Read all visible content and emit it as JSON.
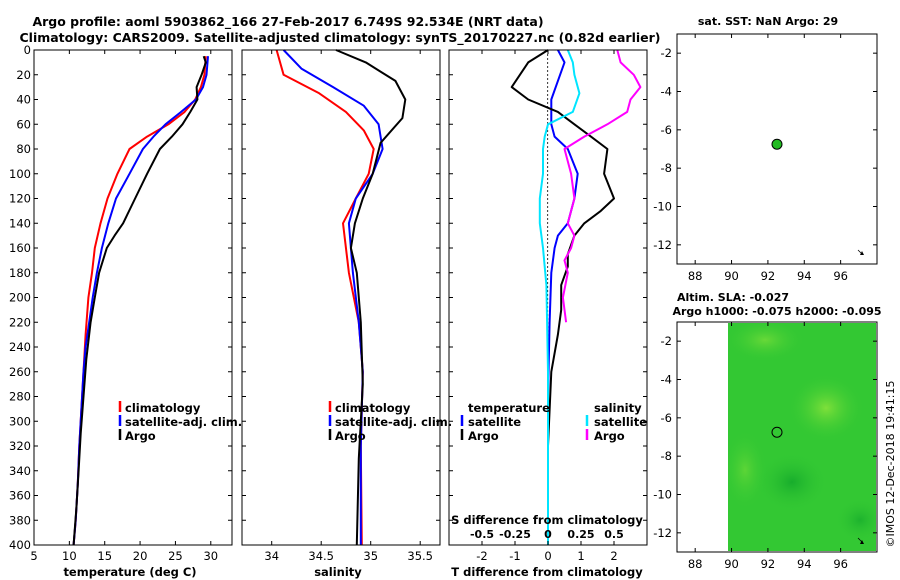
{
  "header": {
    "title_line1": "Argo profile: aoml 5903862_166 27-Feb-2017 6.749S 92.534E (NRT data)",
    "title_line2": "Climatology: CARS2009. Satellite-adjusted climatology: synTS_20170227.nc (0.82d earlier)"
  },
  "colors": {
    "climatology": "#ff0000",
    "satellite": "#0000ff",
    "argo": "#000000",
    "sal_satellite": "#00e5ff",
    "sal_argo": "#ff00ff",
    "sla_field": "#33c833"
  },
  "chart_data": [
    {
      "type": "line",
      "title": "",
      "xlabel": "temperature (deg C)",
      "ylabel": "",
      "xlim": [
        5,
        33
      ],
      "ylim": [
        400,
        0
      ],
      "xticks": [
        5,
        10,
        15,
        20,
        25,
        30
      ],
      "xtick_labels": [
        "5",
        "10",
        "15",
        "20",
        "25",
        "30"
      ],
      "yticks": [
        0,
        20,
        40,
        60,
        80,
        100,
        120,
        140,
        160,
        180,
        200,
        220,
        240,
        260,
        280,
        300,
        320,
        340,
        360,
        380,
        400
      ],
      "ytick_labels": [
        "0",
        "20",
        "40",
        "60",
        "80",
        "100",
        "120",
        "140",
        "160",
        "180",
        "200",
        "220",
        "240",
        "260",
        "280",
        "300",
        "320",
        "340",
        "360",
        "380",
        "400"
      ],
      "legend": [
        "climatology",
        "satellite-adj. clim.",
        "Argo"
      ],
      "series": [
        {
          "name": "climatology",
          "color": "#ff0000",
          "x": [
            29.3,
            29.1,
            28.6,
            27.8,
            26.3,
            24.0,
            21.0,
            18.5,
            16.8,
            15.4,
            14.4,
            13.6,
            13.2,
            12.7,
            12.3,
            12.0,
            11.7,
            11.4,
            11.2,
            10.9,
            10.6
          ],
          "y": [
            5,
            20,
            30,
            40,
            50,
            60,
            70,
            80,
            100,
            120,
            140,
            160,
            180,
            200,
            230,
            260,
            290,
            320,
            350,
            380,
            400
          ]
        },
        {
          "name": "satellite-adj. clim.",
          "color": "#0000ff",
          "x": [
            29.6,
            29.4,
            28.9,
            27.9,
            25.8,
            23.6,
            21.9,
            20.4,
            18.5,
            16.6,
            15.5,
            14.6,
            13.9,
            13.3,
            12.8,
            12.3,
            12.0,
            11.7,
            11.4,
            11.2,
            10.9,
            10.6
          ],
          "y": [
            5,
            20,
            30,
            40,
            50,
            60,
            70,
            80,
            100,
            120,
            140,
            160,
            180,
            200,
            220,
            240,
            260,
            290,
            320,
            350,
            380,
            400
          ]
        },
        {
          "name": "Argo",
          "color": "#000000",
          "x": [
            29.0,
            29.3,
            28.7,
            28.0,
            28.1,
            27.1,
            26.0,
            24.5,
            22.8,
            21.0,
            19.3,
            17.6,
            16.4,
            15.3,
            14.2,
            13.6,
            13.0,
            12.4,
            12.0,
            11.6,
            11.3,
            11.0,
            10.6
          ],
          "y": [
            5,
            10,
            20,
            30,
            40,
            50,
            60,
            70,
            80,
            100,
            120,
            140,
            150,
            160,
            180,
            200,
            220,
            250,
            280,
            310,
            340,
            370,
            400
          ]
        }
      ]
    },
    {
      "type": "line",
      "title": "",
      "xlabel": "salinity",
      "ylabel": "",
      "xlim": [
        33.7,
        35.7
      ],
      "ylim": [
        400,
        0
      ],
      "xticks": [
        34,
        34.5,
        35,
        35.5
      ],
      "xtick_labels": [
        "34",
        "34.5",
        "35",
        "35.5"
      ],
      "legend": [
        "climatology",
        "satellite-adj. clim.",
        "Argo"
      ],
      "series": [
        {
          "name": "climatology",
          "color": "#ff0000",
          "x": [
            34.05,
            34.12,
            34.48,
            34.75,
            34.93,
            35.03,
            34.98,
            34.85,
            34.72,
            34.78,
            34.88,
            34.92,
            34.9,
            34.91
          ],
          "y": [
            0,
            20,
            35,
            50,
            65,
            80,
            100,
            120,
            140,
            180,
            220,
            260,
            320,
            400
          ]
        },
        {
          "name": "satellite-adj. clim.",
          "color": "#0000ff",
          "x": [
            34.12,
            34.3,
            34.62,
            34.93,
            35.08,
            35.12,
            35.02,
            34.85,
            34.78,
            34.82,
            34.88,
            34.92,
            34.9,
            34.9
          ],
          "y": [
            0,
            15,
            30,
            45,
            60,
            80,
            100,
            120,
            140,
            180,
            220,
            260,
            320,
            400
          ]
        },
        {
          "name": "Argo",
          "color": "#000000",
          "x": [
            34.65,
            34.95,
            35.25,
            35.35,
            35.32,
            35.1,
            35.02,
            34.92,
            34.84,
            34.8,
            34.86,
            34.9,
            34.92,
            34.88,
            34.86
          ],
          "y": [
            0,
            10,
            25,
            40,
            55,
            75,
            100,
            120,
            140,
            160,
            180,
            220,
            270,
            330,
            400
          ]
        }
      ]
    },
    {
      "type": "line",
      "title": "",
      "xlabel": "T difference from climatology",
      "ylabel": "",
      "xlim": [
        -3,
        3
      ],
      "ylim": [
        400,
        0
      ],
      "xticks": [
        -2,
        -1,
        0,
        1,
        2
      ],
      "xtick_labels": [
        "-2",
        "-1",
        "0",
        "1",
        "2"
      ],
      "top_axis_label": "S difference from climatology",
      "top_ticks": [
        -0.5,
        -0.25,
        0,
        0.25,
        0.5
      ],
      "top_tick_labels": [
        "-0.5",
        "-0.25",
        "0",
        "0.25",
        "0.5"
      ],
      "legend_temperature_heading": "temperature",
      "legend_salinity_heading": "salinity",
      "legend_temperature": [
        "satellite",
        "Argo"
      ],
      "legend_salinity": [
        "satellite",
        "Argo"
      ],
      "series": [
        {
          "name": "temperature satellite",
          "color": "#0000ff",
          "x": [
            0.3,
            0.5,
            0.3,
            0.1,
            0.1,
            0.2,
            0.6,
            0.9,
            0.8,
            0.6,
            0.3,
            0.2,
            0.1,
            0.05,
            0.0,
            0.0,
            0.0
          ],
          "y": [
            0,
            10,
            25,
            40,
            60,
            70,
            80,
            100,
            120,
            140,
            150,
            160,
            180,
            220,
            280,
            340,
            400
          ]
        },
        {
          "name": "temperature Argo",
          "color": "#000000",
          "x": [
            0.0,
            -0.6,
            -1.1,
            -0.6,
            0.3,
            0.8,
            1.3,
            1.8,
            1.7,
            2.0,
            1.6,
            1.1,
            0.8,
            0.6,
            0.6,
            0.4,
            0.4,
            0.3,
            0.1,
            0.0,
            0.0
          ],
          "y": [
            0,
            10,
            30,
            40,
            50,
            60,
            70,
            80,
            100,
            120,
            130,
            140,
            150,
            165,
            175,
            190,
            210,
            230,
            260,
            320,
            400
          ]
        },
        {
          "name": "salinity satellite",
          "color": "#00e5ff",
          "x": [
            0.6,
            0.75,
            0.8,
            0.95,
            0.75,
            0.0,
            -0.1,
            -0.15,
            -0.15,
            -0.25,
            -0.25,
            -0.15,
            -0.05,
            0.0,
            0.0
          ],
          "y": [
            0,
            10,
            20,
            35,
            50,
            60,
            70,
            80,
            100,
            120,
            140,
            160,
            190,
            260,
            400
          ]
        },
        {
          "name": "salinity Argo",
          "color": "#ff00ff",
          "x": [
            2.1,
            2.2,
            2.6,
            2.8,
            2.5,
            2.4,
            1.8,
            1.1,
            0.5,
            0.6,
            0.7,
            0.8,
            0.6,
            0.8,
            0.7,
            0.5,
            0.6,
            0.45,
            0.55
          ],
          "y": [
            0,
            10,
            20,
            30,
            40,
            50,
            60,
            70,
            80,
            90,
            100,
            120,
            140,
            150,
            160,
            170,
            180,
            200,
            220
          ]
        }
      ]
    },
    {
      "type": "scatter",
      "title": "sat. SST: NaN Argo: 29",
      "xlim": [
        87,
        98
      ],
      "ylim": [
        -13,
        -1
      ],
      "xticks": [
        88,
        90,
        92,
        94,
        96
      ],
      "xtick_labels": [
        "88",
        "90",
        "92",
        "94",
        "96"
      ],
      "yticks": [
        -2,
        -4,
        -6,
        -8,
        -10,
        -12
      ],
      "ytick_labels": [
        "-2",
        "-4",
        "-6",
        "-8",
        "-10",
        "-12"
      ],
      "points": [
        {
          "x": 92.5,
          "y": -6.75,
          "label": "Argo profile",
          "color": "#22bb22"
        }
      ]
    },
    {
      "type": "heatmap",
      "title": "Altim. SLA: -0.027",
      "subtitle": "Argo h1000: -0.075 h2000: -0.095",
      "xlim": [
        87,
        98
      ],
      "ylim": [
        -13,
        -1
      ],
      "data_extent_lon": [
        90,
        98
      ],
      "xticks": [
        88,
        90,
        92,
        94,
        96
      ],
      "xtick_labels": [
        "88",
        "90",
        "92",
        "94",
        "96"
      ],
      "yticks": [
        -2,
        -4,
        -6,
        -8,
        -10,
        -12
      ],
      "ytick_labels": [
        "-2",
        "-4",
        "-6",
        "-8",
        "-10",
        "-12"
      ],
      "points": [
        {
          "x": 92.5,
          "y": -6.75,
          "label": "Argo profile"
        }
      ]
    }
  ],
  "footer": {
    "stamp": "©IMOS 12-Dec-2018 19:41:15"
  }
}
